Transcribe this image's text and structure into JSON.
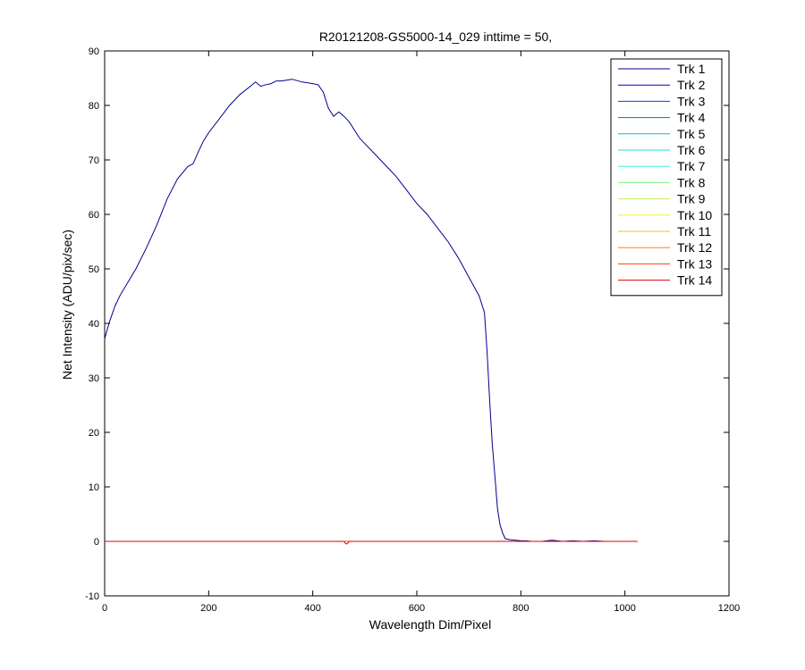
{
  "chart_data": {
    "type": "line",
    "title": "R20121208-GS5000-14_029 inttime = 50,",
    "xlabel": "Wavelength Dim/Pixel",
    "ylabel": "Net Intensity (ADU/pix/sec)",
    "xlim": [
      0,
      1200
    ],
    "ylim": [
      -10,
      90
    ],
    "xticks": [
      "0",
      "200",
      "400",
      "600",
      "800",
      "1000",
      "1200"
    ],
    "yticks": [
      "-10",
      "0",
      "10",
      "20",
      "30",
      "40",
      "50",
      "60",
      "70",
      "80",
      "90"
    ],
    "legend_position": "top-right",
    "grid": false,
    "series": [
      {
        "name": "Trk 1",
        "color": "#00008f",
        "x": [
          0,
          10,
          20,
          30,
          40,
          60,
          80,
          100,
          120,
          140,
          160,
          170,
          180,
          190,
          200,
          220,
          240,
          260,
          280,
          290,
          300,
          310,
          320,
          330,
          340,
          360,
          380,
          400,
          410,
          420,
          430,
          440,
          450,
          460,
          470,
          480,
          490,
          500,
          520,
          540,
          560,
          580,
          600,
          620,
          640,
          660,
          680,
          700,
          720,
          730,
          735,
          740,
          745,
          750,
          755,
          760,
          765,
          770,
          780,
          790,
          800,
          810,
          820,
          840,
          860,
          880,
          900,
          920,
          940,
          960,
          980,
          1000,
          1024
        ],
        "y": [
          37.2,
          40.5,
          43.2,
          45.2,
          46.8,
          50.0,
          53.8,
          58.0,
          62.8,
          66.5,
          68.8,
          69.3,
          71.5,
          73.5,
          75.0,
          77.5,
          80.0,
          82.0,
          83.5,
          84.3,
          83.5,
          83.8,
          84.0,
          84.5,
          84.5,
          84.8,
          84.3,
          84.0,
          83.8,
          82.5,
          79.5,
          78.0,
          78.8,
          78.0,
          77.0,
          75.5,
          74.0,
          73.0,
          71.0,
          69.0,
          67.0,
          64.5,
          62.0,
          60.0,
          57.5,
          55.0,
          52.0,
          48.5,
          45.0,
          42.0,
          35.0,
          26.0,
          18.0,
          12.0,
          6.0,
          3.0,
          1.5,
          0.5,
          0.3,
          0.2,
          0.1,
          0.1,
          0.0,
          0.0,
          0.2,
          0.0,
          0.1,
          0.0,
          0.1,
          0.0,
          0.0,
          0.0,
          0.0
        ]
      },
      {
        "name": "Trk 2",
        "color": "#0000c8",
        "x": [
          0,
          1024
        ],
        "y": [
          0,
          0
        ]
      },
      {
        "name": "Trk 3",
        "color": "#0040ff",
        "x": [
          0,
          1024
        ],
        "y": [
          0,
          0
        ]
      },
      {
        "name": "Trk 4",
        "color": "#007fa0",
        "x": [
          0,
          1024
        ],
        "y": [
          0,
          0
        ]
      },
      {
        "name": "Trk 5",
        "color": "#00bfbf",
        "x": [
          0,
          1024
        ],
        "y": [
          0,
          0
        ]
      },
      {
        "name": "Trk 6",
        "color": "#20dfdf",
        "x": [
          0,
          1024
        ],
        "y": [
          0,
          0
        ]
      },
      {
        "name": "Trk 7",
        "color": "#40f0d0",
        "x": [
          0,
          1024
        ],
        "y": [
          0,
          0
        ]
      },
      {
        "name": "Trk 8",
        "color": "#80ef80",
        "x": [
          0,
          1024
        ],
        "y": [
          0,
          0
        ]
      },
      {
        "name": "Trk 9",
        "color": "#c0ef60",
        "x": [
          0,
          1024
        ],
        "y": [
          0,
          0
        ]
      },
      {
        "name": "Trk 10",
        "color": "#efef40",
        "x": [
          0,
          1024
        ],
        "y": [
          0,
          0
        ]
      },
      {
        "name": "Trk 11",
        "color": "#efbf20",
        "x": [
          0,
          1024
        ],
        "y": [
          0,
          0
        ]
      },
      {
        "name": "Trk 12",
        "color": "#ff8020",
        "x": [
          0,
          1024
        ],
        "y": [
          0,
          0
        ]
      },
      {
        "name": "Trk 13",
        "color": "#ff4000",
        "x": [
          0,
          1024
        ],
        "y": [
          0,
          0
        ]
      },
      {
        "name": "Trk 14",
        "color": "#e00000",
        "x": [
          0,
          460,
          462,
          465,
          468,
          470,
          1024
        ],
        "y": [
          0,
          0,
          -0.3,
          -0.5,
          -0.3,
          0,
          0
        ]
      }
    ]
  }
}
